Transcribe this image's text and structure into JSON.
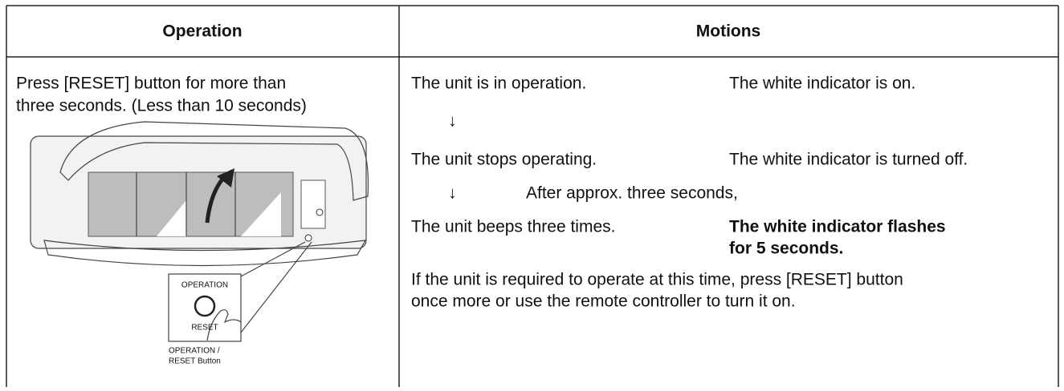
{
  "table": {
    "headers": [
      "Operation",
      "Motions"
    ],
    "operation": {
      "instruction": [
        "Press [RESET] button for more than",
        "three seconds. (Less than 10 seconds)"
      ],
      "illustration": {
        "operation_label": "OPERATION",
        "reset_label": "RESET",
        "caption": [
          "OPERATION /",
          "RESET Button"
        ]
      }
    },
    "motions": {
      "rows": [
        {
          "unit": "The unit is in operation.",
          "indicator": "The white indicator is on."
        },
        {
          "unit": "The unit stops operating.",
          "indicator": "The white indicator is turned off."
        },
        {
          "unit": "The unit beeps three times.",
          "indicator": [
            "The white indicator flashes",
            "for 5 seconds."
          ]
        }
      ],
      "arrows": [
        {
          "symbol": "↓"
        },
        {
          "symbol": "↓",
          "note": "After approx. three seconds,"
        }
      ],
      "note": [
        "If the unit is required to operate at this time, press [RESET] button",
        "once more or use the remote controller to turn it on."
      ]
    }
  }
}
